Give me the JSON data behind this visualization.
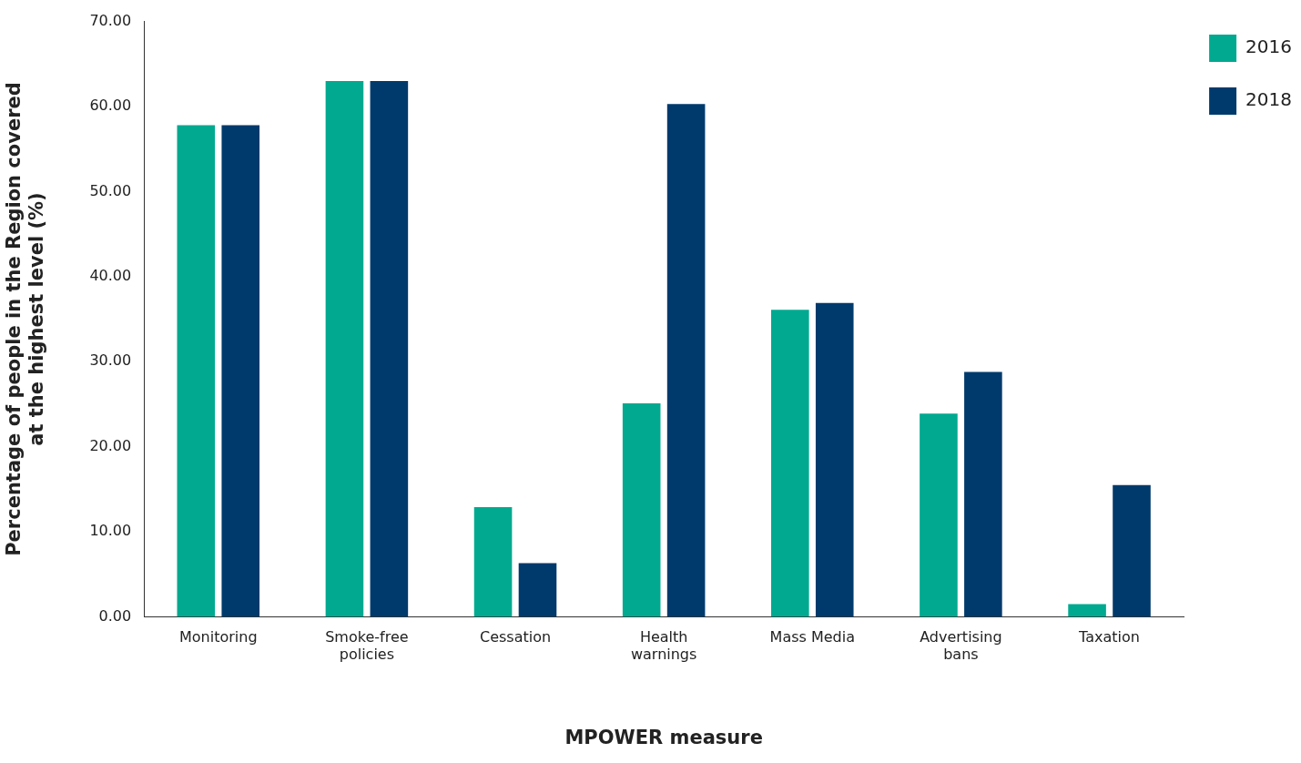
{
  "chart_data": {
    "type": "bar",
    "xlabel": "MPOWER measure",
    "ylabel": "Percentage of people in the Region covered\nat the highest level (%)",
    "categories": [
      "Monitoring",
      "Smoke-free policies",
      "Cessation",
      "Health warnings",
      "Mass Media",
      "Advertising bans",
      "Taxation"
    ],
    "series": [
      {
        "name": "2016",
        "color": "#00a990",
        "values": [
          57.8,
          63.0,
          12.9,
          25.1,
          36.1,
          23.9,
          1.5
        ]
      },
      {
        "name": "2018",
        "color": "#003a6c",
        "values": [
          57.8,
          63.0,
          6.3,
          60.3,
          36.9,
          28.8,
          15.5
        ]
      }
    ],
    "ylim": [
      0,
      70
    ],
    "yticks": [
      {
        "value": 0,
        "label": "0.00"
      },
      {
        "value": 10,
        "label": "10.00"
      },
      {
        "value": 20,
        "label": "20.00"
      },
      {
        "value": 30,
        "label": "30.00"
      },
      {
        "value": 40,
        "label": "40.00"
      },
      {
        "value": 50,
        "label": "50.00"
      },
      {
        "value": 60,
        "label": "60.00"
      },
      {
        "value": 70,
        "label": "70.00"
      }
    ],
    "grid": false,
    "legend": "top right"
  }
}
